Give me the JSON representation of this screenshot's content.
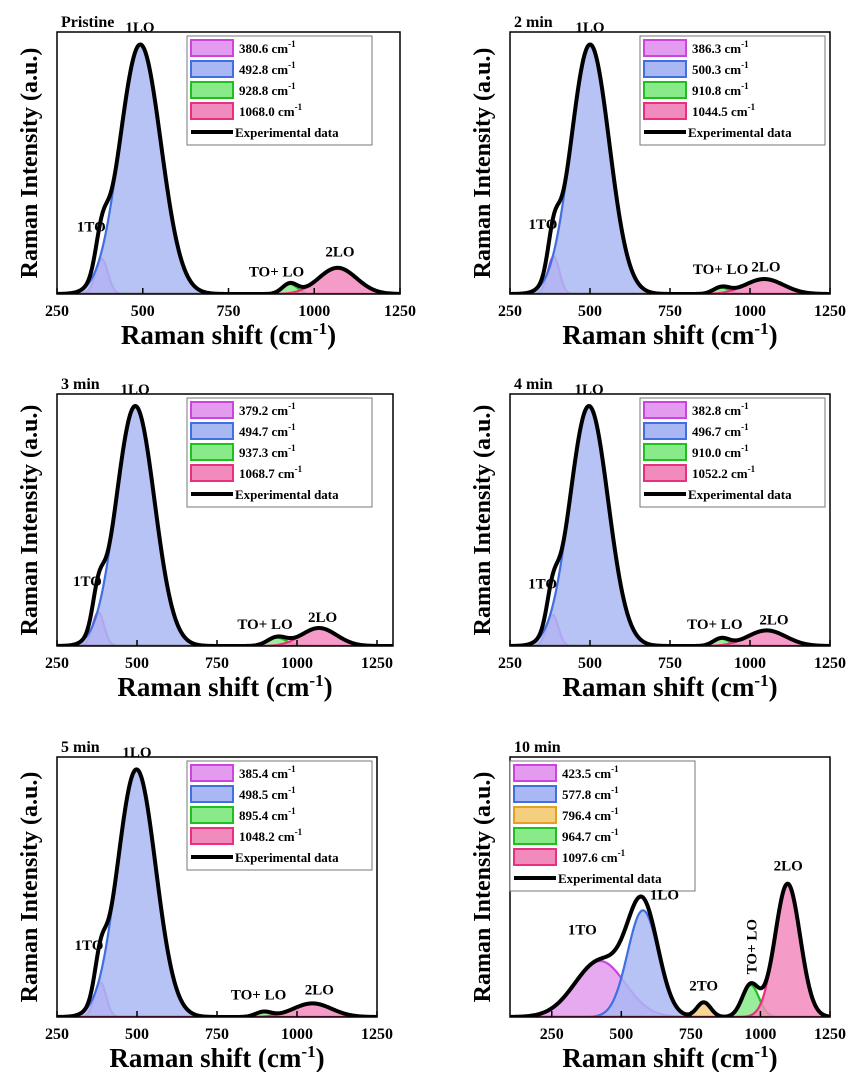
{
  "figure": {
    "xlabel_main": "Raman shift (cm",
    "xlabel_sup": "-1",
    "xlabel_close": ")",
    "ylabel": "Raman Intensity (a.u.)"
  },
  "chart_data": [
    {
      "id": "p0",
      "type": "area",
      "title": "Pristine",
      "xlim": [
        250,
        1250
      ],
      "ticks": [
        250,
        500,
        750,
        1000,
        1250
      ],
      "ylim": [
        0,
        1.05
      ],
      "components": [
        {
          "center": 380.6,
          "amp": 0.14,
          "width": 18,
          "color": "#cc44dd",
          "fill": "#e39bef",
          "label": "380.6 cm",
          "sup": "-1"
        },
        {
          "center": 492.8,
          "amp": 1.0,
          "width": 60,
          "color": "#3f6fe0",
          "fill": "#a9b8f2",
          "label": "492.8 cm",
          "sup": "-1"
        },
        {
          "center": 928.8,
          "amp": 0.04,
          "width": 22,
          "color": "#1fbf1f",
          "fill": "#88ea88",
          "label": "928.8 cm",
          "sup": "-1"
        },
        {
          "center": 1068.0,
          "amp": 0.105,
          "width": 55,
          "color": "#e8307f",
          "fill": "#f28bbd",
          "label": "1068.0 cm",
          "sup": "-1"
        }
      ],
      "experimental_label": "Experimental data",
      "annotations": [
        {
          "text": "1TO",
          "x": 350,
          "y": 0.25
        },
        {
          "text": "1LO",
          "x": 492,
          "y": 1.05
        },
        {
          "text": "TO+ LO",
          "x": 890,
          "y": 0.07
        },
        {
          "text": "2LO",
          "x": 1075,
          "y": 0.15
        }
      ]
    },
    {
      "id": "p1",
      "type": "area",
      "title": "2 min",
      "xlim": [
        250,
        1250
      ],
      "ticks": [
        250,
        500,
        750,
        1000,
        1250
      ],
      "ylim": [
        0,
        1.05
      ],
      "components": [
        {
          "center": 386.3,
          "amp": 0.15,
          "width": 18,
          "color": "#cc44dd",
          "fill": "#e39bef",
          "label": "386.3 cm",
          "sup": "-1"
        },
        {
          "center": 500.3,
          "amp": 1.0,
          "width": 60,
          "color": "#3f6fe0",
          "fill": "#a9b8f2",
          "label": "500.3 cm",
          "sup": "-1"
        },
        {
          "center": 910.8,
          "amp": 0.025,
          "width": 25,
          "color": "#1fbf1f",
          "fill": "#88ea88",
          "label": "910.8 cm",
          "sup": "-1"
        },
        {
          "center": 1044.5,
          "amp": 0.06,
          "width": 60,
          "color": "#e8307f",
          "fill": "#f28bbd",
          "label": "1044.5 cm",
          "sup": "-1"
        }
      ],
      "experimental_label": "Experimental data",
      "annotations": [
        {
          "text": "1TO",
          "x": 353,
          "y": 0.26
        },
        {
          "text": "1LO",
          "x": 500,
          "y": 1.05
        },
        {
          "text": "TO+ LO",
          "x": 908,
          "y": 0.08
        },
        {
          "text": "2LO",
          "x": 1050,
          "y": 0.09
        }
      ]
    },
    {
      "id": "p2",
      "type": "area",
      "title": "3 min",
      "xlim": [
        250,
        1300
      ],
      "ticks": [
        250,
        500,
        750,
        1000,
        1250
      ],
      "ylim": [
        0,
        1.05
      ],
      "components": [
        {
          "center": 379.2,
          "amp": 0.14,
          "width": 18,
          "color": "#cc44dd",
          "fill": "#e39bef",
          "label": "379.2 cm",
          "sup": "-1"
        },
        {
          "center": 494.7,
          "amp": 1.0,
          "width": 60,
          "color": "#3f6fe0",
          "fill": "#a9b8f2",
          "label": "494.7 cm",
          "sup": "-1"
        },
        {
          "center": 937.3,
          "amp": 0.035,
          "width": 30,
          "color": "#1fbf1f",
          "fill": "#88ea88",
          "label": "937.3 cm",
          "sup": "-1"
        },
        {
          "center": 1068.7,
          "amp": 0.075,
          "width": 55,
          "color": "#e8307f",
          "fill": "#f28bbd",
          "label": "1068.7 cm",
          "sup": "-1"
        }
      ],
      "experimental_label": "Experimental data",
      "annotations": [
        {
          "text": "1TO",
          "x": 345,
          "y": 0.25
        },
        {
          "text": "1LO",
          "x": 494,
          "y": 1.05
        },
        {
          "text": "TO+ LO",
          "x": 900,
          "y": 0.07
        },
        {
          "text": "2LO",
          "x": 1080,
          "y": 0.1
        }
      ]
    },
    {
      "id": "p3",
      "type": "area",
      "title": "4 min",
      "xlim": [
        250,
        1250
      ],
      "ticks": [
        250,
        500,
        750,
        1000,
        1250
      ],
      "ylim": [
        0,
        1.05
      ],
      "components": [
        {
          "center": 382.8,
          "amp": 0.13,
          "width": 18,
          "color": "#cc44dd",
          "fill": "#e39bef",
          "label": "382.8 cm",
          "sup": "-1"
        },
        {
          "center": 496.7,
          "amp": 1.0,
          "width": 60,
          "color": "#3f6fe0",
          "fill": "#a9b8f2",
          "label": "496.7 cm",
          "sup": "-1"
        },
        {
          "center": 910.0,
          "amp": 0.03,
          "width": 25,
          "color": "#1fbf1f",
          "fill": "#88ea88",
          "label": "910.0 cm",
          "sup": "-1"
        },
        {
          "center": 1052.2,
          "amp": 0.065,
          "width": 60,
          "color": "#e8307f",
          "fill": "#f28bbd",
          "label": "1052.2 cm",
          "sup": "-1"
        }
      ],
      "experimental_label": "Experimental data",
      "annotations": [
        {
          "text": "1TO",
          "x": 352,
          "y": 0.24
        },
        {
          "text": "1LO",
          "x": 497,
          "y": 1.05
        },
        {
          "text": "TO+ LO",
          "x": 890,
          "y": 0.07
        },
        {
          "text": "2LO",
          "x": 1075,
          "y": 0.09
        }
      ]
    },
    {
      "id": "p4",
      "type": "area",
      "title": "5 min",
      "xlim": [
        250,
        1250
      ],
      "ticks": [
        250,
        500,
        750,
        1000,
        1250
      ],
      "ylim": [
        0,
        1.05
      ],
      "components": [
        {
          "center": 385.4,
          "amp": 0.14,
          "width": 18,
          "color": "#cc44dd",
          "fill": "#e39bef",
          "label": "385.4 cm",
          "sup": "-1"
        },
        {
          "center": 498.5,
          "amp": 1.0,
          "width": 60,
          "color": "#3f6fe0",
          "fill": "#a9b8f2",
          "label": "498.5 cm",
          "sup": "-1"
        },
        {
          "center": 895.4,
          "amp": 0.02,
          "width": 25,
          "color": "#1fbf1f",
          "fill": "#88ea88",
          "label": "895.4 cm",
          "sup": "-1"
        },
        {
          "center": 1048.2,
          "amp": 0.055,
          "width": 60,
          "color": "#e8307f",
          "fill": "#f28bbd",
          "label": "1048.2 cm",
          "sup": "-1"
        }
      ],
      "experimental_label": "Experimental data",
      "annotations": [
        {
          "text": "1TO",
          "x": 350,
          "y": 0.27
        },
        {
          "text": "1LO",
          "x": 500,
          "y": 1.05
        },
        {
          "text": "TO+ LO",
          "x": 880,
          "y": 0.07
        },
        {
          "text": "2LO",
          "x": 1070,
          "y": 0.09
        }
      ]
    },
    {
      "id": "p5",
      "type": "area",
      "title": "10 min",
      "xlim": [
        100,
        1250
      ],
      "ticks": [
        250,
        500,
        750,
        1000,
        1250
      ],
      "ylim": [
        0,
        1.95
      ],
      "components": [
        {
          "center": 423.5,
          "amp": 0.42,
          "width": 90,
          "color": "#cc44dd",
          "fill": "#e39bef",
          "label": "423.5 cm",
          "sup": "-1"
        },
        {
          "center": 577.8,
          "amp": 0.8,
          "width": 55,
          "color": "#3f6fe0",
          "fill": "#a9b8f2",
          "label": "577.8 cm",
          "sup": "-1"
        },
        {
          "center": 796.4,
          "amp": 0.11,
          "width": 25,
          "color": "#e6a020",
          "fill": "#f5cf80",
          "label": "796.4 cm",
          "sup": "-1"
        },
        {
          "center": 964.7,
          "amp": 0.24,
          "width": 30,
          "color": "#1fbf1f",
          "fill": "#88ea88",
          "label": "964.7 cm",
          "sup": "-1"
        },
        {
          "center": 1097.6,
          "amp": 1.0,
          "width": 45,
          "color": "#e8307f",
          "fill": "#f28bbd",
          "label": "1097.6 cm",
          "sup": "-1"
        }
      ],
      "experimental_label": "Experimental data",
      "annotations": [
        {
          "text": "1TO",
          "x": 360,
          "y": 0.62
        },
        {
          "text": "1LO",
          "x": 655,
          "y": 0.88
        },
        {
          "text": "2TO",
          "x": 796,
          "y": 0.2
        },
        {
          "text": "2LO",
          "x": 1100,
          "y": 1.1
        }
      ],
      "rotated_annotation": {
        "text": "TO+ LO",
        "x": 985,
        "y": 0.32
      }
    }
  ]
}
